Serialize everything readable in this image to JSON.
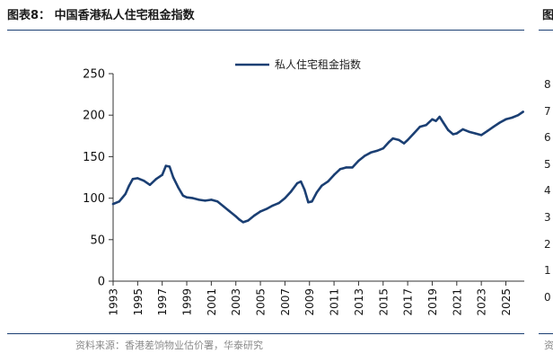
{
  "figure": {
    "title": "图表8：  中国香港私人住宅租金指数",
    "source": "资料来源：香港差饷物业估价署，华泰研究"
  },
  "edge_figure": {
    "title_fragment": "图",
    "axis_fragments": [
      "8",
      "7",
      "6",
      "5",
      "4",
      "3",
      "2",
      "1",
      "0"
    ],
    "source_fragment": "资"
  },
  "colors": {
    "series": "#1b3f73",
    "rule": "#1b3f73",
    "axis": "#333333",
    "source_text": "#8a8a8a"
  },
  "chart_data": {
    "type": "line",
    "title": "",
    "xlabel": "",
    "ylabel": "",
    "ylim": [
      0,
      250
    ],
    "yticks": [
      0,
      50,
      100,
      150,
      200,
      250
    ],
    "xlim": [
      1993,
      2026.5
    ],
    "xticks": [
      "1993",
      "1995",
      "1997",
      "1999",
      "2001",
      "2003",
      "2005",
      "2007",
      "2009",
      "2011",
      "2013",
      "2015",
      "2017",
      "2019",
      "2021",
      "2023",
      "2025"
    ],
    "grid": false,
    "legend": {
      "position": "top-center",
      "entries": [
        "私人住宅租金指数"
      ]
    },
    "series": [
      {
        "name": "私人住宅租金指数",
        "x": [
          1993.0,
          1993.5,
          1994.0,
          1994.3,
          1994.6,
          1995.0,
          1995.5,
          1996.0,
          1996.5,
          1997.0,
          1997.3,
          1997.6,
          1997.9,
          1998.3,
          1998.7,
          1999.0,
          1999.5,
          2000.0,
          2000.5,
          2001.0,
          2001.5,
          2002.0,
          2002.5,
          2003.0,
          2003.3,
          2003.6,
          2004.0,
          2004.5,
          2005.0,
          2005.5,
          2006.0,
          2006.5,
          2007.0,
          2007.5,
          2008.0,
          2008.3,
          2008.6,
          2008.9,
          2009.2,
          2009.6,
          2010.0,
          2010.5,
          2011.0,
          2011.5,
          2012.0,
          2012.5,
          2013.0,
          2013.5,
          2014.0,
          2014.5,
          2015.0,
          2015.5,
          2015.8,
          2016.3,
          2016.7,
          2017.0,
          2017.5,
          2018.0,
          2018.5,
          2019.0,
          2019.3,
          2019.6,
          2019.9,
          2020.3,
          2020.7,
          2021.0,
          2021.5,
          2022.0,
          2022.5,
          2023.0,
          2023.5,
          2024.0,
          2024.5,
          2025.0,
          2025.5,
          2026.0,
          2026.4
        ],
        "y": [
          93,
          96,
          105,
          115,
          123,
          124,
          121,
          116,
          123,
          128,
          139,
          138,
          125,
          113,
          103,
          101,
          100,
          98,
          97,
          98,
          96,
          90,
          84,
          78,
          74,
          71,
          73,
          79,
          84,
          87,
          91,
          94,
          100,
          108,
          118,
          120,
          110,
          95,
          96,
          107,
          115,
          120,
          128,
          135,
          137,
          137,
          145,
          151,
          155,
          157,
          160,
          168,
          172,
          170,
          166,
          170,
          178,
          186,
          188,
          195,
          193,
          198,
          191,
          182,
          177,
          178,
          183,
          180,
          178,
          176,
          181,
          186,
          191,
          195,
          197,
          200,
          204
        ]
      }
    ]
  }
}
